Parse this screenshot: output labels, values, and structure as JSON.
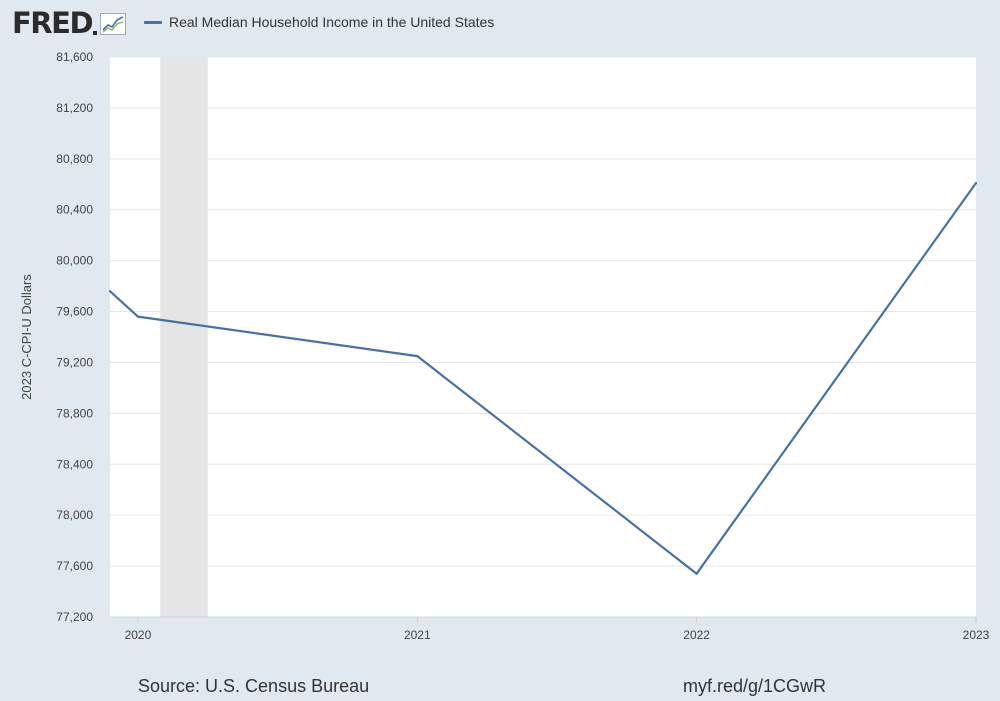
{
  "header": {
    "logo_text": "FRED",
    "logo_icon": "line-chart-icon"
  },
  "colors": {
    "background": "#e1e9f0",
    "plot_background": "#ffffff",
    "series_line": "#4572a7",
    "recession_band": "#e5e5e5",
    "gridline": "#e6e6e6"
  },
  "chart_data": {
    "type": "line",
    "title": "",
    "xlabel": "",
    "ylabel": "2023 C-CPI-U Dollars",
    "xlim": [
      2019.9,
      2023.0
    ],
    "ylim": [
      77200,
      81600
    ],
    "y_ticks": [
      77200,
      77600,
      78000,
      78400,
      78800,
      79200,
      79600,
      80000,
      80400,
      80800,
      81200,
      81600
    ],
    "y_tick_labels": [
      "77,200",
      "77,600",
      "78,000",
      "78,400",
      "78,800",
      "79,200",
      "79,600",
      "80,000",
      "80,400",
      "80,800",
      "81,200",
      "81,600"
    ],
    "x_ticks": [
      2020,
      2021,
      2022,
      2023
    ],
    "x_tick_labels": [
      "2020",
      "2021",
      "2022",
      "2023"
    ],
    "grid": true,
    "legend": "top-left",
    "recession_shading": [
      {
        "start": 2020.08,
        "end": 2020.25
      }
    ],
    "series": [
      {
        "name": "Real Median Household Income in the United States",
        "x": [
          2019.9,
          2020,
          2021,
          2022,
          2023
        ],
        "y": [
          79760,
          79560,
          79250,
          77540,
          80610
        ]
      }
    ]
  },
  "footer": {
    "source": "Source: U.S. Census Bureau",
    "url": "myf.red/g/1CGwR"
  }
}
